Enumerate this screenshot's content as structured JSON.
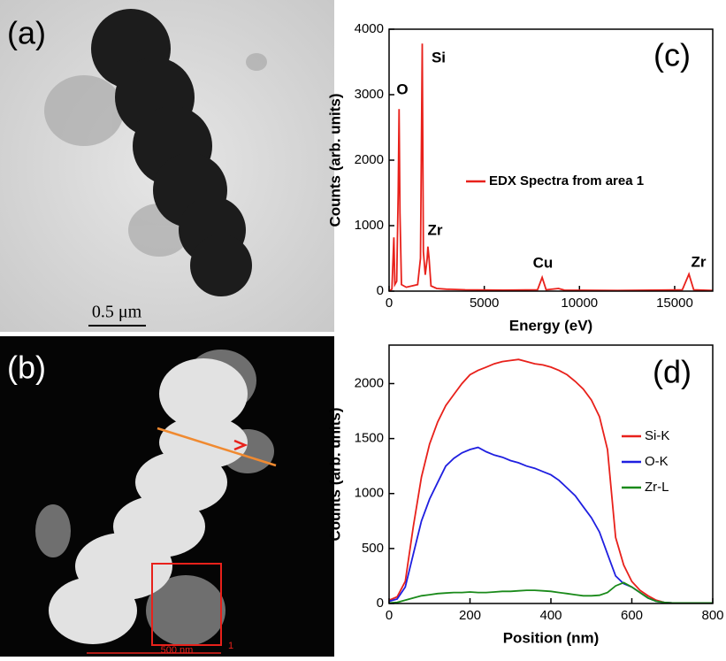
{
  "images": [
    {
      "label": "(a)",
      "scale_bar": "0.5 μm"
    },
    {
      "label": "(b)",
      "scale_bar": "500 nm",
      "region_label": "1"
    }
  ],
  "chart_data": [
    {
      "type": "line",
      "panel_label": "(c)",
      "x_label": "Energy (eV)",
      "y_label": "Counts (arb. units)",
      "xlim": [
        0,
        17000
      ],
      "xticks": [
        0,
        5000,
        10000,
        15000
      ],
      "ylim": [
        0,
        4000
      ],
      "yticks": [
        0,
        1000,
        2000,
        3000,
        4000
      ],
      "annotations": [
        "O",
        "Si",
        "Zr",
        "Cu",
        "Zr"
      ],
      "x": [
        0,
        150,
        250,
        300,
        400,
        480,
        525,
        570,
        650,
        900,
        1200,
        1500,
        1650,
        1740,
        1800,
        1900,
        2000,
        2040,
        2100,
        2200,
        2500,
        3000,
        4000,
        6000,
        7800,
        8040,
        8250,
        8900,
        9200,
        12000,
        15400,
        15750,
        16000,
        17000
      ],
      "series": [
        {
          "name": "EDX Spectra from area 1",
          "color": "#e8211b",
          "values": [
            0,
            30,
            820,
            100,
            150,
            1500,
            2780,
            1200,
            100,
            60,
            80,
            100,
            500,
            3780,
            600,
            250,
            500,
            680,
            500,
            80,
            40,
            30,
            20,
            15,
            20,
            210,
            20,
            40,
            15,
            10,
            20,
            260,
            20,
            10
          ]
        }
      ]
    },
    {
      "type": "line",
      "panel_label": "(d)",
      "x_label": "Position (nm)",
      "y_label": "Counts (arb. units)",
      "xlim": [
        0,
        800
      ],
      "xticks": [
        0,
        200,
        400,
        600,
        800
      ],
      "ylim": [
        0,
        2350
      ],
      "yticks": [
        0,
        500,
        1000,
        1500,
        2000
      ],
      "x": [
        0,
        20,
        40,
        60,
        80,
        100,
        120,
        140,
        160,
        180,
        200,
        220,
        240,
        260,
        280,
        300,
        320,
        340,
        360,
        380,
        400,
        420,
        440,
        460,
        480,
        500,
        520,
        540,
        560,
        580,
        600,
        620,
        640,
        660,
        680,
        700,
        720,
        740,
        760,
        780,
        800
      ],
      "series": [
        {
          "name": "Si-K",
          "color": "#e8211b",
          "values": [
            30,
            60,
            200,
            700,
            1150,
            1450,
            1650,
            1800,
            1900,
            2000,
            2080,
            2120,
            2150,
            2180,
            2200,
            2210,
            2220,
            2200,
            2180,
            2170,
            2150,
            2120,
            2080,
            2020,
            1950,
            1850,
            1700,
            1400,
            600,
            350,
            200,
            120,
            70,
            30,
            10,
            5,
            5,
            5,
            5,
            5,
            5
          ]
        },
        {
          "name": "O-K",
          "color": "#1f1fe0",
          "values": [
            20,
            40,
            150,
            450,
            750,
            950,
            1100,
            1250,
            1320,
            1370,
            1400,
            1420,
            1380,
            1350,
            1330,
            1300,
            1280,
            1250,
            1230,
            1200,
            1170,
            1120,
            1050,
            980,
            880,
            780,
            650,
            450,
            250,
            180,
            150,
            100,
            50,
            20,
            10,
            5,
            5,
            5,
            5,
            5,
            5
          ]
        },
        {
          "name": "Zr-L",
          "color": "#1a8a1a",
          "values": [
            5,
            10,
            30,
            50,
            70,
            80,
            90,
            95,
            100,
            100,
            105,
            100,
            100,
            105,
            110,
            110,
            115,
            120,
            120,
            115,
            110,
            100,
            90,
            80,
            70,
            70,
            75,
            100,
            160,
            190,
            150,
            100,
            50,
            20,
            10,
            5,
            5,
            5,
            5,
            5,
            5
          ]
        }
      ]
    }
  ]
}
